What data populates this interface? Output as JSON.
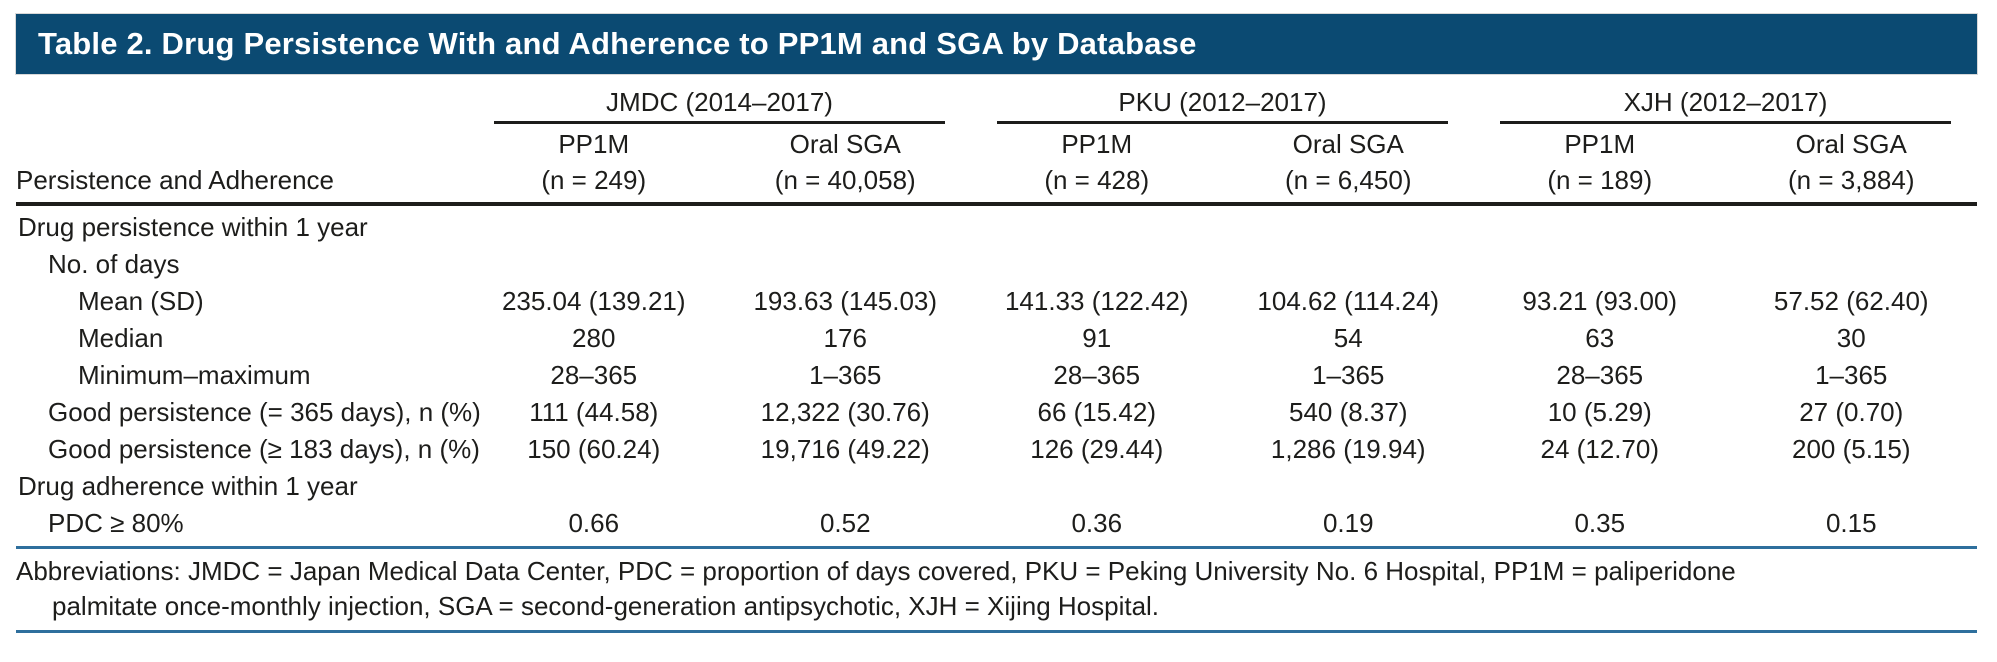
{
  "title": "Table 2. Drug Persistence With and Adherence to PP1M and SGA by Database",
  "table": {
    "row_header_label": "Persistence and Adherence",
    "groups": [
      {
        "label": "JMDC (2014–2017)",
        "columns": [
          {
            "drug": "PP1M",
            "n": "(n = 249)"
          },
          {
            "drug": "Oral SGA",
            "n": "(n = 40,058)"
          }
        ]
      },
      {
        "label": "PKU (2012–2017)",
        "columns": [
          {
            "drug": "PP1M",
            "n": "(n = 428)"
          },
          {
            "drug": "Oral SGA",
            "n": "(n = 6,450)"
          }
        ]
      },
      {
        "label": "XJH (2012–2017)",
        "columns": [
          {
            "drug": "PP1M",
            "n": "(n = 189)"
          },
          {
            "drug": "Oral SGA",
            "n": "(n = 3,884)"
          }
        ]
      }
    ],
    "rows": [
      {
        "label": "Drug persistence within 1 year",
        "indent": 0,
        "values": [
          "",
          "",
          "",
          "",
          "",
          ""
        ]
      },
      {
        "label": "No. of days",
        "indent": 1,
        "values": [
          "",
          "",
          "",
          "",
          "",
          ""
        ]
      },
      {
        "label": "Mean (SD)",
        "indent": 2,
        "values": [
          "235.04 (139.21)",
          "193.63 (145.03)",
          "141.33 (122.42)",
          "104.62 (114.24)",
          "93.21 (93.00)",
          "57.52 (62.40)"
        ]
      },
      {
        "label": "Median",
        "indent": 2,
        "values": [
          "280",
          "176",
          "91",
          "54",
          "63",
          "30"
        ]
      },
      {
        "label": "Minimum–maximum",
        "indent": 2,
        "values": [
          "28–365",
          "1–365",
          "28–365",
          "1–365",
          "28–365",
          "1–365"
        ]
      },
      {
        "label": "Good persistence (= 365 days), n (%)",
        "indent": 1,
        "values": [
          "111 (44.58)",
          "12,322 (30.76)",
          "66 (15.42)",
          "540 (8.37)",
          "10 (5.29)",
          "27 (0.70)"
        ]
      },
      {
        "label": "Good persistence (≥ 183 days), n (%)",
        "indent": 1,
        "values": [
          "150 (60.24)",
          "19,716 (49.22)",
          "126 (29.44)",
          "1,286 (19.94)",
          "24 (12.70)",
          "200 (5.15)"
        ]
      },
      {
        "label": "Drug adherence within 1 year",
        "indent": 0,
        "values": [
          "",
          "",
          "",
          "",
          "",
          ""
        ]
      },
      {
        "label": "PDC ≥ 80%",
        "indent": 1,
        "values": [
          "0.66",
          "0.52",
          "0.36",
          "0.19",
          "0.35",
          "0.15"
        ]
      }
    ]
  },
  "footer": {
    "line1": "Abbreviations: JMDC = Japan Medical Data Center, PDC = proportion of days covered, PKU = Peking University No. 6 Hospital, PP1M = paliperidone",
    "line2": "palmitate once-monthly injection, SGA = second-generation antipsychotic, XJH = Xijing Hospital."
  },
  "colors": {
    "title_bar": "#0b4a72",
    "rule_blue": "#2e6f9d",
    "text": "#1d1d1b"
  }
}
